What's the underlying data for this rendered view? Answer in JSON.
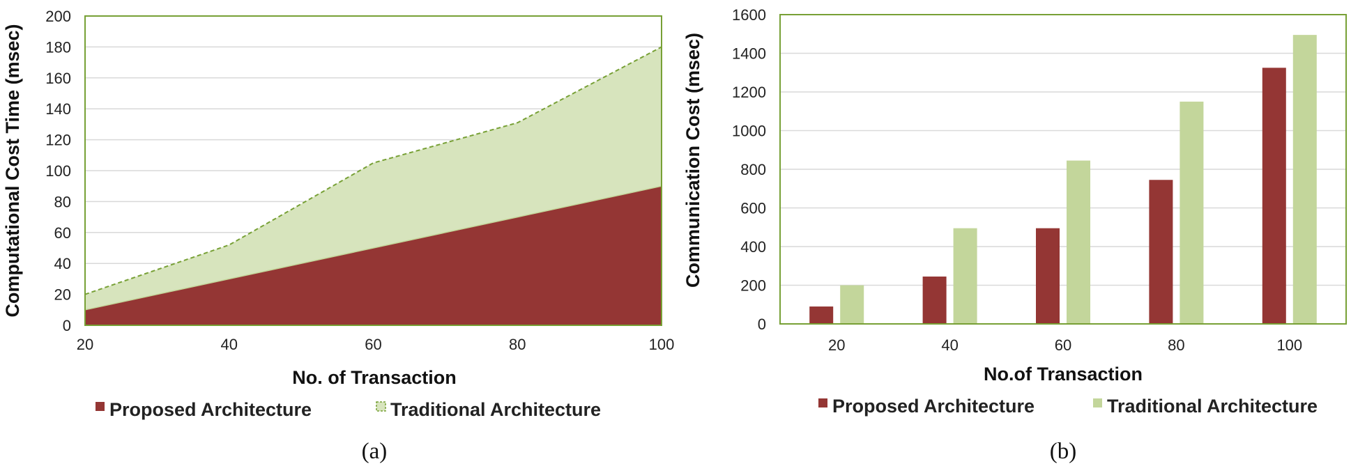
{
  "chart_data": [
    {
      "type": "area",
      "x": [
        20,
        40,
        60,
        80,
        100
      ],
      "series": [
        {
          "name": "Proposed Architecture",
          "values": [
            10,
            30,
            50,
            70,
            90
          ],
          "color": "#943634"
        },
        {
          "name": "Traditional Architecture",
          "values": [
            20,
            52,
            105,
            131,
            180
          ],
          "color": "#d7e4bd",
          "line_color": "#77a035"
        }
      ],
      "xlabel": "No. of Transaction",
      "ylabel": "Computational Cost Time (msec)",
      "ylim": [
        0,
        200
      ],
      "yticks": [
        0,
        20,
        40,
        60,
        80,
        100,
        120,
        140,
        160,
        180,
        200
      ],
      "xlim": [
        20,
        100
      ],
      "grid": true,
      "legend": "bottom",
      "caption": "(a)"
    },
    {
      "type": "bar",
      "categories": [
        "20",
        "40",
        "60",
        "80",
        "100"
      ],
      "series": [
        {
          "name": "Proposed Architecture",
          "values": [
            90,
            245,
            495,
            745,
            1325
          ],
          "color": "#943634"
        },
        {
          "name": "Traditional Architecture",
          "values": [
            200,
            495,
            845,
            1150,
            1495
          ],
          "color": "#c3d69b"
        }
      ],
      "xlabel": "No.of Transaction",
      "ylabel": "Communication Cost (msec)",
      "ylim": [
        0,
        1600
      ],
      "yticks": [
        0,
        200,
        400,
        600,
        800,
        1000,
        1200,
        1400,
        1600
      ],
      "grid": true,
      "legend": "bottom",
      "caption": "(b)"
    }
  ]
}
